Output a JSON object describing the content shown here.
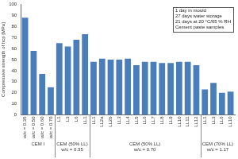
{
  "chart_data": {
    "type": "bar",
    "y_label": "Compressive strength of hcp [MPa]",
    "categories": [
      "w/c = 0.35",
      "w/c = 0.50",
      "w/c = 0.60",
      "w/c = 0.70",
      "L1",
      "L3",
      "L6",
      "LL1",
      "LL1",
      "LL2a",
      "LL2b",
      "LL3",
      "LL4",
      "LL5",
      "LL6",
      "LL7",
      "LL8",
      "LL9",
      "LL10",
      "LL11",
      "LL12",
      "LL1",
      "LL3",
      "LL6",
      "LL10"
    ],
    "values": [
      88,
      58,
      37,
      25,
      65,
      62,
      68,
      73,
      48,
      51,
      50,
      50,
      51,
      45,
      48,
      48,
      47,
      47,
      48,
      48,
      45,
      23,
      29,
      20,
      21
    ],
    "color": "#4a7ebb",
    "groups": [
      {
        "label": [
          "CEM I"
        ],
        "span": 4
      },
      {
        "label": [
          "CEM (50% LL)",
          "w/c = 0.35"
        ],
        "span": 4
      },
      {
        "label": [
          "CEM (50% LL)",
          "w/c = 0.70"
        ],
        "span": 13
      },
      {
        "label": [
          "CEM (70% LL)",
          "w/c = 1.17"
        ],
        "span": 4
      }
    ],
    "annotations": [
      "1 day in mould",
      "27 days water storage",
      "21 days at 20 °C/65 % RH",
      "Cement paste samples"
    ],
    "ylim": [
      0,
      100
    ],
    "yticks": [
      0,
      10,
      20,
      30,
      40,
      50,
      60,
      70,
      80,
      90,
      100
    ],
    "grid": false
  }
}
